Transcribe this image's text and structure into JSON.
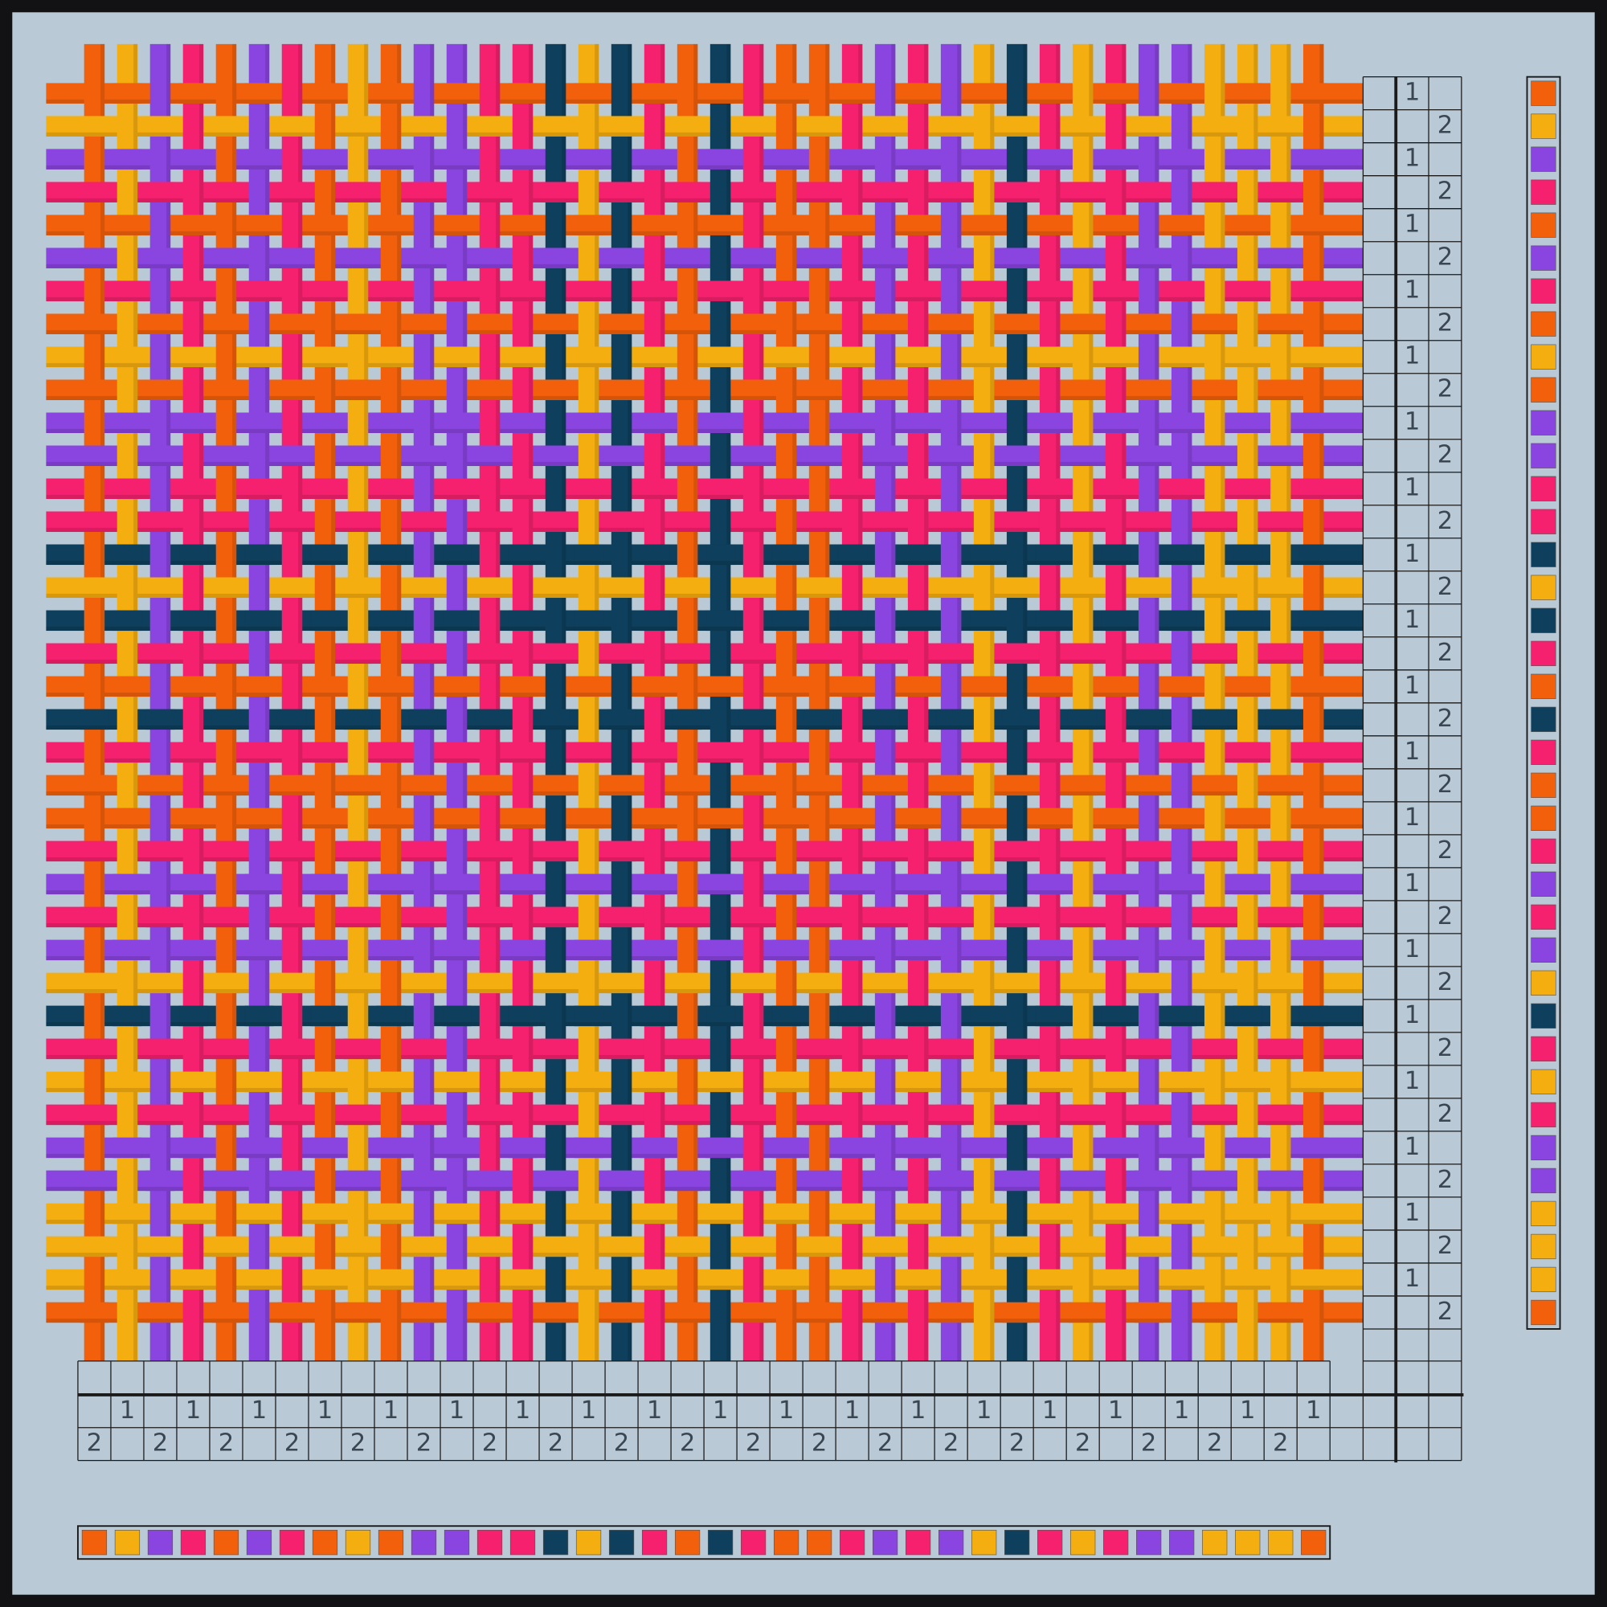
{
  "warp_colors": [
    "#f2600c",
    "#f5ae10",
    "#8a44e0",
    "#f5206e",
    "#f2600c",
    "#8a44e0",
    "#f5206e",
    "#f2600c",
    "#f5ae10",
    "#f2600c",
    "#8a44e0",
    "#8a44e0",
    "#f5206e",
    "#f5206e",
    "#0e3f5c",
    "#f5ae10",
    "#0e3f5c",
    "#f5206e",
    "#f2600c",
    "#0e3f5c",
    "#f5206e",
    "#f2600c",
    "#f2600c",
    "#f5206e",
    "#8a44e0",
    "#f5206e",
    "#8a44e0",
    "#f5ae10",
    "#0e3f5c",
    "#f5206e",
    "#f5ae10",
    "#f5206e",
    "#8a44e0",
    "#8a44e0",
    "#f5ae10",
    "#f5ae10",
    "#f5ae10",
    "#f2600c"
  ],
  "weft_colors": [
    "#f2600c",
    "#f5ae10",
    "#8a44e0",
    "#f5206e",
    "#f2600c",
    "#8a44e0",
    "#f5206e",
    "#f2600c",
    "#f5ae10",
    "#f2600c",
    "#8a44e0",
    "#8a44e0",
    "#f5206e",
    "#f5206e",
    "#0e3f5c",
    "#f5ae10",
    "#0e3f5c",
    "#f5206e",
    "#f2600c",
    "#0e3f5c",
    "#f5206e",
    "#f2600c",
    "#f2600c",
    "#f5206e",
    "#8a44e0",
    "#f5206e",
    "#8a44e0",
    "#f5ae10",
    "#0e3f5c",
    "#f5206e",
    "#f5ae10",
    "#f5206e",
    "#8a44e0",
    "#8a44e0",
    "#f5ae10",
    "#f5ae10",
    "#f5ae10",
    "#f2600c"
  ],
  "threading": [
    2,
    1,
    2,
    1,
    2,
    1,
    2,
    1,
    2,
    1,
    2,
    1,
    2,
    1,
    2,
    1,
    2,
    1,
    2,
    1,
    2,
    1,
    2,
    1,
    2,
    1,
    2,
    1,
    2,
    1,
    2,
    1,
    2,
    1,
    2,
    1,
    2,
    1
  ],
  "treadling": [
    1,
    2,
    1,
    2,
    1,
    2,
    1,
    2,
    1,
    2,
    1,
    2,
    1,
    2,
    1,
    2,
    1,
    2,
    1,
    2,
    1,
    2,
    1,
    2,
    1,
    2,
    1,
    2,
    1,
    2,
    1,
    2,
    1,
    2,
    1,
    2,
    1,
    2
  ]
}
